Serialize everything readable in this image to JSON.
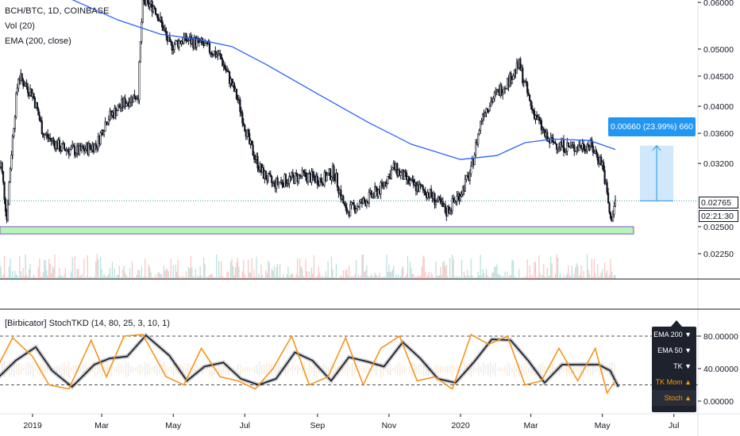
{
  "legend": {
    "symbol": "BCH/BTC, 1D, COINBASE",
    "vol": "Vol (20)",
    "ema": "EMA (200, close)"
  },
  "sub_legend": "[Birbicator] StochTKD (14, 80, 25, 3, 10, 1)",
  "measure_tip": "0.00660 (23.99%) 660",
  "price_tags": {
    "last": "0.02765",
    "countdown": "02:21:30"
  },
  "indicator_menu": [
    "EMA 200 ▼",
    "EMA 50 ▼",
    "TK ▼",
    "TK Mom ▲",
    "Stoch ▲"
  ],
  "colors": {
    "candle": "#131722",
    "ema": "#2962ff",
    "support_zone_fill": "#b5f3b9",
    "support_zone_border": "#7e57c2",
    "measure_box": "#bbdefb",
    "measure_line": "#2196f3",
    "stoch_k": "#f7931a",
    "stoch_d": "#131722"
  },
  "chart_data": [
    {
      "type": "candlestick",
      "title": "BCH/BTC, 1D, COINBASE",
      "y_axis": {
        "scale": "log",
        "ticks": [
          "0.06000",
          "0.05000",
          "0.04500",
          "0.04000",
          "0.03600",
          "0.03200",
          "0.02765",
          "0.02500",
          "0.02250"
        ]
      },
      "x_axis": {
        "ticks": [
          "2019",
          "Mar",
          "May",
          "Jul",
          "Sep",
          "Nov",
          "2020",
          "Mar",
          "May",
          "Jul"
        ]
      },
      "price_path": [
        [
          "2018-11-25",
          0.0285
        ],
        [
          "2018-12-05",
          0.032
        ],
        [
          "2018-12-10",
          0.0258
        ],
        [
          "2018-12-20",
          0.045
        ],
        [
          "2019-01-01",
          0.042
        ],
        [
          "2019-01-10",
          0.036
        ],
        [
          "2019-01-25",
          0.034
        ],
        [
          "2019-02-10",
          0.0335
        ],
        [
          "2019-02-25",
          0.0345
        ],
        [
          "2019-03-05",
          0.038
        ],
        [
          "2019-03-20",
          0.0405
        ],
        [
          "2019-04-01",
          0.042
        ],
        [
          "2019-04-05",
          0.06
        ],
        [
          "2019-04-15",
          0.059
        ],
        [
          "2019-04-28",
          0.0505
        ],
        [
          "2019-05-10",
          0.052
        ],
        [
          "2019-05-25",
          0.051
        ],
        [
          "2019-06-10",
          0.0485
        ],
        [
          "2019-06-25",
          0.041
        ],
        [
          "2019-07-05",
          0.0345
        ],
        [
          "2019-07-15",
          0.031
        ],
        [
          "2019-07-25",
          0.0295
        ],
        [
          "2019-08-05",
          0.03
        ],
        [
          "2019-08-20",
          0.0305
        ],
        [
          "2019-09-05",
          0.03
        ],
        [
          "2019-09-15",
          0.031
        ],
        [
          "2019-09-25",
          0.0265
        ],
        [
          "2019-10-10",
          0.0275
        ],
        [
          "2019-10-25",
          0.029
        ],
        [
          "2019-11-05",
          0.0315
        ],
        [
          "2019-11-20",
          0.0295
        ],
        [
          "2019-12-05",
          0.0285
        ],
        [
          "2019-12-20",
          0.0265
        ],
        [
          "2020-01-01",
          0.0285
        ],
        [
          "2020-01-10",
          0.031
        ],
        [
          "2020-01-20",
          0.039
        ],
        [
          "2020-02-01",
          0.042
        ],
        [
          "2020-02-12",
          0.0445
        ],
        [
          "2020-02-20",
          0.047
        ],
        [
          "2020-03-01",
          0.04
        ],
        [
          "2020-03-15",
          0.035
        ],
        [
          "2020-03-25",
          0.0345
        ],
        [
          "2020-04-05",
          0.034
        ],
        [
          "2020-04-20",
          0.0345
        ],
        [
          "2020-05-01",
          0.032
        ],
        [
          "2020-05-08",
          0.0255
        ],
        [
          "2020-05-12",
          0.0276
        ]
      ],
      "ema_200": [
        [
          "2018-11-25",
          0.066
        ],
        [
          "2019-02-01",
          0.061
        ],
        [
          "2019-03-15",
          0.056
        ],
        [
          "2019-04-20",
          0.053
        ],
        [
          "2019-05-20",
          0.052
        ],
        [
          "2019-06-20",
          0.0505
        ],
        [
          "2019-07-20",
          0.047
        ],
        [
          "2019-09-01",
          0.042
        ],
        [
          "2019-10-15",
          0.0375
        ],
        [
          "2019-11-20",
          0.0345
        ],
        [
          "2020-01-01",
          0.0325
        ],
        [
          "2020-02-01",
          0.033
        ],
        [
          "2020-02-25",
          0.0347
        ],
        [
          "2020-03-20",
          0.0352
        ],
        [
          "2020-04-20",
          0.035
        ],
        [
          "2020-05-12",
          0.0338
        ]
      ],
      "support_zone": [
        0.0243,
        0.025
      ],
      "measure": {
        "from": 0.02765,
        "to": 0.0343,
        "change": "0.00660 (23.99%) 660"
      }
    },
    {
      "type": "line",
      "title": "[Birbicator] StochTKD (14, 80, 25, 3, 10, 1)",
      "ylim": [
        0,
        100
      ],
      "y_ticks": [
        "80.00000",
        "40.00000",
        "0.00000"
      ],
      "hlines": [
        80,
        20
      ],
      "series_k": [
        [
          "2018-11-25",
          22
        ],
        [
          "2018-12-15",
          78
        ],
        [
          "2019-01-01",
          55
        ],
        [
          "2019-01-15",
          20
        ],
        [
          "2019-02-01",
          15
        ],
        [
          "2019-02-20",
          75
        ],
        [
          "2019-03-05",
          30
        ],
        [
          "2019-03-20",
          80
        ],
        [
          "2019-04-05",
          82
        ],
        [
          "2019-04-25",
          30
        ],
        [
          "2019-05-10",
          20
        ],
        [
          "2019-05-25",
          65
        ],
        [
          "2019-06-10",
          30
        ],
        [
          "2019-06-25",
          25
        ],
        [
          "2019-07-10",
          15
        ],
        [
          "2019-07-25",
          40
        ],
        [
          "2019-08-10",
          80
        ],
        [
          "2019-08-25",
          20
        ],
        [
          "2019-09-10",
          30
        ],
        [
          "2019-09-25",
          78
        ],
        [
          "2019-10-10",
          20
        ],
        [
          "2019-10-25",
          65
        ],
        [
          "2019-11-10",
          80
        ],
        [
          "2019-11-25",
          25
        ],
        [
          "2019-12-10",
          30
        ],
        [
          "2019-12-25",
          15
        ],
        [
          "2020-01-10",
          82
        ],
        [
          "2020-01-25",
          70
        ],
        [
          "2020-02-10",
          80
        ],
        [
          "2020-02-25",
          20
        ],
        [
          "2020-03-10",
          25
        ],
        [
          "2020-03-25",
          65
        ],
        [
          "2020-04-10",
          25
        ],
        [
          "2020-04-25",
          65
        ],
        [
          "2020-05-05",
          10
        ],
        [
          "2020-05-12",
          25
        ]
      ]
    }
  ]
}
